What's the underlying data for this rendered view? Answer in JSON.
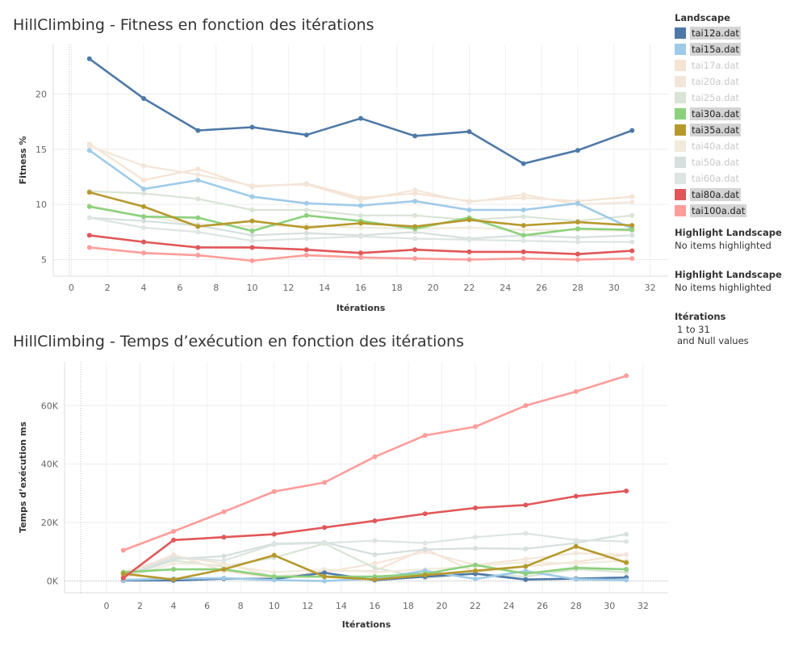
{
  "chart_data": [
    {
      "type": "line",
      "title": "HillClimbing - Fitness en fonction des itérations",
      "xlabel": "Itérations",
      "ylabel": "Fitness %",
      "xlim": [
        -1,
        33
      ],
      "ylim": [
        3.5,
        24.5
      ],
      "xticks": [
        0,
        2,
        4,
        6,
        8,
        10,
        12,
        14,
        16,
        18,
        20,
        22,
        24,
        26,
        28,
        30,
        32
      ],
      "yticks": [
        5,
        10,
        15,
        20
      ],
      "x": [
        1,
        4,
        7,
        10,
        13,
        16,
        19,
        22,
        25,
        28,
        31
      ],
      "series": [
        {
          "name": "tai12a.dat",
          "values": [
            23.2,
            19.6,
            16.7,
            17.0,
            16.3,
            17.8,
            16.2,
            16.6,
            13.7,
            14.9,
            16.7
          ]
        },
        {
          "name": "tai15a.dat",
          "values": [
            14.9,
            11.4,
            12.2,
            10.7,
            10.1,
            9.9,
            10.3,
            9.5,
            9.5,
            10.1,
            7.8
          ]
        },
        {
          "name": "tai17a.dat",
          "values": [
            15.5,
            12.2,
            13.2,
            11.6,
            11.9,
            10.6,
            11.0,
            10.3,
            10.6,
            10.3,
            10.7
          ]
        },
        {
          "name": "tai20a.dat",
          "values": [
            15.3,
            13.5,
            12.7,
            11.7,
            11.8,
            10.4,
            11.3,
            10.2,
            10.9,
            10.0,
            10.2
          ]
        },
        {
          "name": "tai25a.dat",
          "values": [
            11.2,
            11.0,
            10.5,
            9.5,
            9.5,
            9.0,
            9.0,
            8.6,
            8.9,
            8.5,
            9.0
          ]
        },
        {
          "name": "tai30a.dat",
          "values": [
            9.8,
            8.9,
            8.8,
            7.6,
            9.0,
            8.5,
            7.8,
            8.8,
            7.2,
            7.8,
            7.7
          ]
        },
        {
          "name": "tai35a.dat",
          "values": [
            11.1,
            9.8,
            8.0,
            8.5,
            7.9,
            8.3,
            8.0,
            8.6,
            8.1,
            8.4,
            8.1
          ]
        },
        {
          "name": "tai40a.dat",
          "values": [
            9.9,
            8.9,
            8.2,
            8.0,
            8.1,
            7.9,
            7.8,
            7.9,
            7.7,
            7.7,
            7.6
          ]
        },
        {
          "name": "tai50a.dat",
          "values": [
            8.8,
            8.5,
            8.1,
            7.2,
            7.4,
            7.2,
            7.5,
            6.9,
            7.2,
            7.0,
            7.2
          ]
        },
        {
          "name": "tai60a.dat",
          "values": [
            8.8,
            7.9,
            7.5,
            6.7,
            6.9,
            7.1,
            6.9,
            6.8,
            6.7,
            6.6,
            6.6
          ]
        },
        {
          "name": "tai80a.dat",
          "values": [
            7.2,
            6.6,
            6.1,
            6.1,
            5.9,
            5.6,
            5.9,
            5.7,
            5.7,
            5.5,
            5.8
          ]
        },
        {
          "name": "tai100a.dat",
          "values": [
            6.1,
            5.6,
            5.4,
            4.9,
            5.4,
            5.2,
            5.1,
            5.0,
            5.1,
            5.0,
            5.1
          ]
        }
      ]
    },
    {
      "type": "line",
      "title": "HillClimbing - Temps d’exécution en fonction des itérations",
      "xlabel": "Itérations",
      "ylabel": "Temps d’exécution ms",
      "xlim": [
        -2.5,
        33.5
      ],
      "ylim": [
        -4000,
        75000
      ],
      "xticks": [
        0,
        2,
        4,
        6,
        8,
        10,
        12,
        14,
        16,
        18,
        20,
        22,
        24,
        26,
        28,
        30,
        32
      ],
      "yticks": [
        0,
        20000,
        40000,
        60000
      ],
      "ytick_labels": [
        "0K",
        "20K",
        "40K",
        "60K"
      ],
      "x": [
        1,
        4,
        7,
        10,
        13,
        16,
        19,
        22,
        25,
        28,
        31
      ],
      "series": [
        {
          "name": "tai12a.dat",
          "values": [
            200,
            200,
            800,
            700,
            2800,
            300,
            1500,
            2500,
            500,
            800,
            1200
          ]
        },
        {
          "name": "tai15a.dat",
          "values": [
            400,
            800,
            1000,
            300,
            0,
            800,
            3500,
            700,
            3400,
            600,
            300
          ]
        },
        {
          "name": "tai17a.dat",
          "values": [
            2000,
            9000,
            3500,
            1000,
            3500,
            3500,
            11000,
            3000,
            5000,
            6500,
            9000
          ]
        },
        {
          "name": "tai20a.dat",
          "values": [
            3000,
            8500,
            6000,
            1500,
            3000,
            6000,
            10000,
            5500,
            7500,
            9500,
            9000
          ]
        },
        {
          "name": "tai25a.dat",
          "values": [
            1500,
            7000,
            5000,
            8000,
            12800,
            4500,
            1000,
            2500,
            1500,
            4000,
            3000
          ]
        },
        {
          "name": "tai30a.dat",
          "values": [
            3000,
            4000,
            4000,
            1500,
            1500,
            1500,
            2500,
            5500,
            2500,
            4500,
            4000
          ]
        },
        {
          "name": "tai35a.dat",
          "values": [
            2500,
            500,
            4000,
            8800,
            1500,
            500,
            2000,
            3500,
            5000,
            11800,
            6300
          ]
        },
        {
          "name": "tai40a.dat",
          "values": [
            1000,
            6000,
            5500,
            3000,
            4000,
            3000,
            4000,
            5000,
            6500,
            6000,
            7000
          ]
        },
        {
          "name": "tai50a.dat",
          "values": [
            1500,
            7500,
            8500,
            12800,
            13200,
            9000,
            10800,
            11200,
            11000,
            13000,
            16000
          ]
        },
        {
          "name": "tai60a.dat",
          "values": [
            2000,
            8000,
            7000,
            12500,
            13000,
            13800,
            13000,
            15000,
            16300,
            14000,
            13500
          ]
        },
        {
          "name": "tai80a.dat",
          "values": [
            1000,
            14000,
            15000,
            16000,
            18300,
            20600,
            23000,
            25000,
            26000,
            29000,
            30800
          ]
        },
        {
          "name": "tai100a.dat",
          "values": [
            10500,
            17000,
            23700,
            30600,
            33700,
            42500,
            49800,
            52800,
            60000,
            64800,
            70200
          ]
        }
      ]
    }
  ],
  "legend": {
    "title": "Landscape",
    "items": [
      {
        "label": "tai12a.dat",
        "color": "#4e79a7",
        "active": true
      },
      {
        "label": "tai15a.dat",
        "color": "#a0cbe8",
        "active": true
      },
      {
        "label": "tai17a.dat",
        "color": "#f5e3d3",
        "active": false
      },
      {
        "label": "tai20a.dat",
        "color": "#f3e6d9",
        "active": false
      },
      {
        "label": "tai25a.dat",
        "color": "#d9e4d6",
        "active": false
      },
      {
        "label": "tai30a.dat",
        "color": "#8cd17d",
        "active": true
      },
      {
        "label": "tai35a.dat",
        "color": "#b6992d",
        "active": true
      },
      {
        "label": "tai40a.dat",
        "color": "#f1ebdc",
        "active": false
      },
      {
        "label": "tai50a.dat",
        "color": "#d5dfde",
        "active": false
      },
      {
        "label": "tai60a.dat",
        "color": "#dde5e2",
        "active": false
      },
      {
        "label": "tai80a.dat",
        "color": "#e15759",
        "active": true
      },
      {
        "label": "tai100a.dat",
        "color": "#ff9d9a",
        "active": true
      }
    ]
  },
  "highlight1": {
    "title": "Highlight Landscape",
    "value": "No items highlighted"
  },
  "highlight2": {
    "title": "Highlight Landscape",
    "value": "No items highlighted"
  },
  "iterations_filter": {
    "title": "Itérations",
    "range": "1 to 31",
    "nulls": "and Null values"
  }
}
